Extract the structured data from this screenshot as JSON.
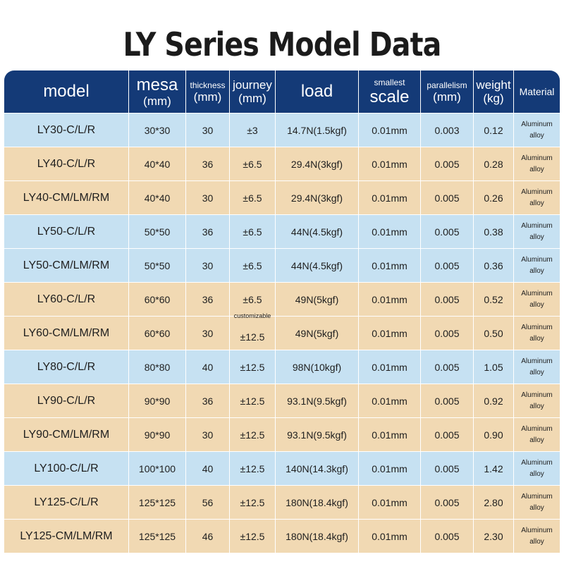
{
  "title": "LY Series Model Data",
  "headers": {
    "model": "model",
    "mesa": "mesa",
    "mesa_unit": "(mm)",
    "thickness": "thickness",
    "thickness_unit": "(mm)",
    "journey": "journey",
    "journey_unit": "(mm)",
    "load": "load",
    "scale_top": "smallest",
    "scale_bottom": "scale",
    "parallelism": "parallelism",
    "parallelism_unit": "(mm)",
    "weight": "weight",
    "weight_unit": "(kg)",
    "material": "Material"
  },
  "journey_note": "customizable",
  "material_line1": "Aluminum",
  "material_line2": "alloy",
  "colors": {
    "header_bg": "#143a77",
    "row_blue": "#c6e1f2",
    "row_tan": "#f1d9b3"
  },
  "rows": [
    {
      "model": "LY30-C/L/R",
      "mesa": "30*30",
      "thickness": "30",
      "journey": "±3",
      "load": "14.7N(1.5kgf)",
      "scale": "0.01mm",
      "parallelism": "0.003",
      "weight": "0.12"
    },
    {
      "model": "LY40-C/L/R",
      "mesa": "40*40",
      "thickness": "36",
      "journey": "±6.5",
      "load": "29.4N(3kgf)",
      "scale": "0.01mm",
      "parallelism": "0.005",
      "weight": "0.28"
    },
    {
      "model": "LY40-CM/LM/RM",
      "mesa": "40*40",
      "thickness": "30",
      "journey": "±6.5",
      "load": "29.4N(3kgf)",
      "scale": "0.01mm",
      "parallelism": "0.005",
      "weight": "0.26"
    },
    {
      "model": "LY50-C/L/R",
      "mesa": "50*50",
      "thickness": "36",
      "journey": "±6.5",
      "load": "44N(4.5kgf)",
      "scale": "0.01mm",
      "parallelism": "0.005",
      "weight": "0.38"
    },
    {
      "model": "LY50-CM/LM/RM",
      "mesa": "50*50",
      "thickness": "30",
      "journey": "±6.5",
      "load": "44N(4.5kgf)",
      "scale": "0.01mm",
      "parallelism": "0.005",
      "weight": "0.36"
    },
    {
      "model": "LY60-C/L/R",
      "mesa": "60*60",
      "thickness": "36",
      "journey": "±6.5",
      "load": "49N(5kgf)",
      "scale": "0.01mm",
      "parallelism": "0.005",
      "weight": "0.52"
    },
    {
      "model": "LY60-CM/LM/RM",
      "mesa": "60*60",
      "thickness": "30",
      "journey": "±12.5",
      "load": "49N(5kgf)",
      "scale": "0.01mm",
      "parallelism": "0.005",
      "weight": "0.50"
    },
    {
      "model": "LY80-C/L/R",
      "mesa": "80*80",
      "thickness": "40",
      "journey": "±12.5",
      "load": "98N(10kgf)",
      "scale": "0.01mm",
      "parallelism": "0.005",
      "weight": "1.05"
    },
    {
      "model": "LY90-C/L/R",
      "mesa": "90*90",
      "thickness": "36",
      "journey": "±12.5",
      "load": "93.1N(9.5kgf)",
      "scale": "0.01mm",
      "parallelism": "0.005",
      "weight": "0.92"
    },
    {
      "model": "LY90-CM/LM/RM",
      "mesa": "90*90",
      "thickness": "30",
      "journey": "±12.5",
      "load": "93.1N(9.5kgf)",
      "scale": "0.01mm",
      "parallelism": "0.005",
      "weight": "0.90"
    },
    {
      "model": "LY100-C/L/R",
      "mesa": "100*100",
      "thickness": "40",
      "journey": "±12.5",
      "load": "140N(14.3kgf)",
      "scale": "0.01mm",
      "parallelism": "0.005",
      "weight": "1.42"
    },
    {
      "model": "LY125-C/L/R",
      "mesa": "125*125",
      "thickness": "56",
      "journey": "±12.5",
      "load": "180N(18.4kgf)",
      "scale": "0.01mm",
      "parallelism": "0.005",
      "weight": "2.80"
    },
    {
      "model": "LY125-CM/LM/RM",
      "mesa": "125*125",
      "thickness": "46",
      "journey": "±12.5",
      "load": "180N(18.4kgf)",
      "scale": "0.01mm",
      "parallelism": "0.005",
      "weight": "2.30"
    }
  ]
}
